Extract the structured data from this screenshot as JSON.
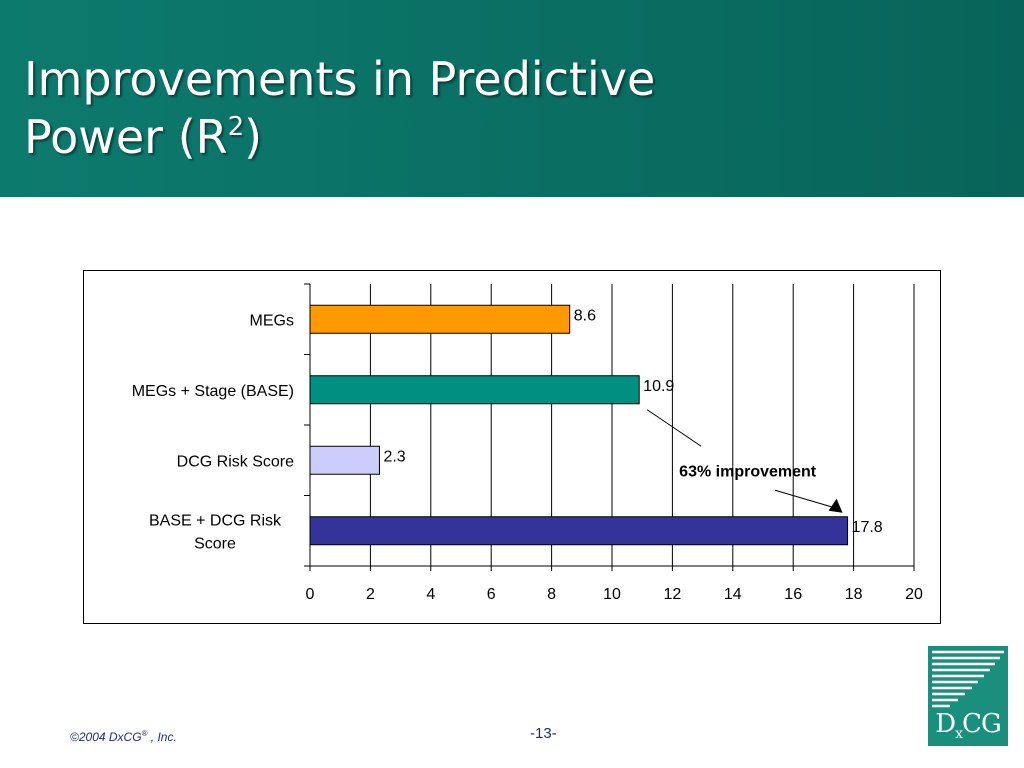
{
  "slide": {
    "title_line1": "Improvements in Predictive",
    "title_line2": "Power (R",
    "title_sup": "2",
    "title_close": ")",
    "footer_copyright": "©2004 DxCG",
    "footer_reg": "®",
    "footer_inc": " , Inc.",
    "page_number": "-13-",
    "logo": {
      "text_main": "D",
      "text_sub": "x",
      "text_rest": "CG"
    },
    "colors": {
      "header_bg": "#0a6d62",
      "footer_text": "#1c2a8c",
      "logo_bg": "#1a8f7d"
    }
  },
  "chart_data": {
    "type": "bar",
    "orientation": "horizontal",
    "categories": [
      [
        "MEGs"
      ],
      [
        "MEGs + Stage (BASE)"
      ],
      [
        "DCG Risk Score"
      ],
      [
        "BASE + DCG Risk",
        "Score"
      ]
    ],
    "values": [
      8.6,
      10.9,
      2.3,
      17.8
    ],
    "value_labels": [
      "8.6",
      "10.9",
      "2.3",
      "17.8"
    ],
    "bar_colors": [
      "#ff9900",
      "#008f80",
      "#ccccff",
      "#333399"
    ],
    "xlim": [
      0,
      20
    ],
    "xticks": [
      0,
      2,
      4,
      6,
      8,
      10,
      12,
      14,
      16,
      18,
      20
    ],
    "grid": "vertical",
    "annotation": {
      "text": "63% improvement",
      "from_value": 10.9,
      "to_value": 17.8
    }
  }
}
